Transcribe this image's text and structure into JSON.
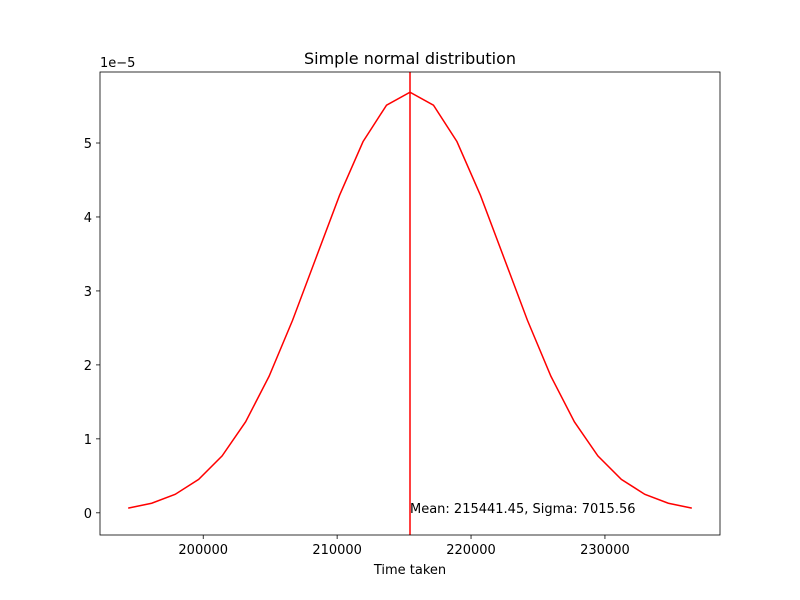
{
  "chart_data": {
    "type": "line",
    "title": "Simple normal distribution",
    "x_label": "Time taken",
    "y_offset_label": "1e−5",
    "x": [
      194394.77,
      196148.66,
      197902.55,
      199656.44,
      201410.33,
      203164.22,
      204918.11,
      206672.0,
      208425.89,
      210179.78,
      211933.67,
      213687.56,
      215441.45,
      217195.34,
      218949.23,
      220703.12,
      222457.01,
      224210.9,
      225964.79,
      227718.68,
      229472.57,
      231226.46,
      232980.35,
      234734.24,
      236488.13
    ],
    "series": [
      {
        "color": "#ff0000",
        "values": [
          0.0632,
          0.1296,
          0.2499,
          0.4524,
          0.7696,
          1.2298,
          1.8462,
          2.6035,
          3.4491,
          4.2925,
          5.0184,
          5.5116,
          5.6866,
          5.5116,
          5.0184,
          4.2925,
          3.4491,
          2.6035,
          1.8462,
          1.2298,
          0.7696,
          0.4524,
          0.2499,
          0.1296,
          0.0632
        ]
      }
    ],
    "vline": {
      "value": 215441.45,
      "color": "#ff0000"
    },
    "annotation": "Mean: 215441.45, Sigma: 7015.56",
    "xlim": [
      192290,
      238593
    ],
    "ylim": [
      -0.3,
      5.96
    ],
    "xticks": [
      200000,
      210000,
      220000,
      230000
    ],
    "yticks": [
      0,
      1,
      2,
      3,
      4,
      5
    ],
    "grid": false
  }
}
